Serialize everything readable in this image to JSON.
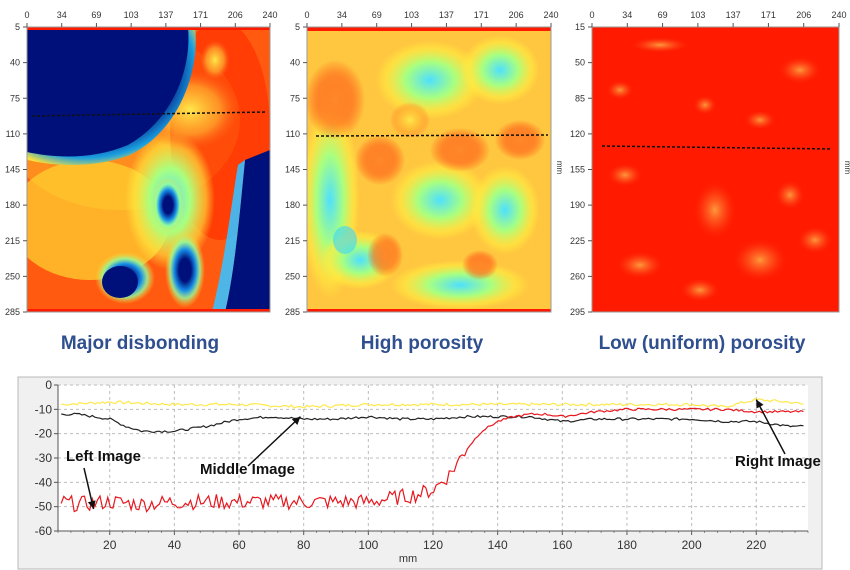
{
  "captions": {
    "left": "Major disbonding",
    "middle": "High porosity",
    "right": "Low (uniform) porosity"
  },
  "colors": {
    "heat_red": "#ff1a00",
    "heat_navy": "#00107a",
    "line_red": "#e8171e",
    "line_black": "#222222",
    "line_yellow": "#ffe84a",
    "caption_blue": "#2f4f8f",
    "chart_bg": "#f0f0f0"
  },
  "chart_data": [
    {
      "type": "heatmap",
      "name": "Major disbonding",
      "x_ticks": [
        "0",
        "34",
        "69",
        "103",
        "137",
        "171",
        "206",
        "240"
      ],
      "y_ticks": [
        "5",
        "40",
        "75",
        "110",
        "145",
        "180",
        "215",
        "250",
        "285"
      ],
      "colormap": "jet (navy → cyan → yellow → red)",
      "feature": "large navy disbond region top-left, navy blobs lower-middle and right edge",
      "dashed_line": "near y ≈ 90 mm"
    },
    {
      "type": "heatmap",
      "name": "High porosity",
      "x_ticks": [
        "0",
        "34",
        "69",
        "103",
        "137",
        "171",
        "206",
        "240"
      ],
      "y_ticks": [
        "5",
        "40",
        "75",
        "110",
        "145",
        "180",
        "215",
        "250",
        "285"
      ],
      "y_unit": "mm",
      "colormap": "jet",
      "feature": "mottled cyan / yellow / orange texture",
      "dashed_line": "near y ≈ 110 mm"
    },
    {
      "type": "heatmap",
      "name": "Low (uniform) porosity",
      "x_ticks": [
        "0",
        "34",
        "69",
        "103",
        "137",
        "171",
        "206",
        "240"
      ],
      "y_ticks": [
        "15",
        "50",
        "85",
        "120",
        "155",
        "190",
        "225",
        "260",
        "295"
      ],
      "y_unit": "mm",
      "colormap": "jet",
      "feature": "almost uniform red with light orange patches",
      "dashed_line": "near y ≈ 128 mm"
    },
    {
      "type": "line",
      "xlabel": "mm",
      "x_ticks": [
        "20",
        "40",
        "60",
        "80",
        "100",
        "120",
        "140",
        "160",
        "180",
        "200",
        "220"
      ],
      "y_ticks": [
        "0",
        "-10",
        "-20",
        "-30",
        "-40",
        "-50",
        "-60"
      ],
      "xlim": [
        4,
        236
      ],
      "ylim": [
        -60,
        0
      ],
      "grid": true,
      "series": [
        {
          "color": "yellow",
          "x": [
            5,
            20,
            40,
            60,
            80,
            100,
            120,
            140,
            160,
            180,
            200,
            210,
            220,
            230,
            235
          ],
          "y": [
            -8,
            -7,
            -8,
            -8,
            -9,
            -8,
            -8,
            -8,
            -8,
            -8,
            -8,
            -9,
            -6,
            -7,
            -8
          ]
        },
        {
          "color": "black",
          "x": [
            5,
            10,
            20,
            25,
            30,
            40,
            50,
            60,
            70,
            80,
            90,
            100,
            110,
            120,
            130,
            140,
            150,
            160,
            170,
            180,
            190,
            200,
            210,
            220,
            230,
            235
          ],
          "y": [
            -12,
            -12,
            -14,
            -17,
            -19,
            -19,
            -17,
            -14,
            -13,
            -14,
            -14,
            -13,
            -14,
            -14,
            -13,
            -13,
            -13,
            -15,
            -14,
            -14,
            -14,
            -14,
            -15,
            -15,
            -17,
            -17
          ]
        },
        {
          "color": "red",
          "x": [
            5,
            10,
            20,
            30,
            40,
            50,
            60,
            70,
            80,
            90,
            100,
            105,
            110,
            115,
            120,
            125,
            130,
            135,
            140,
            145,
            150,
            155,
            160,
            170,
            180,
            190,
            200,
            210,
            220,
            230,
            235
          ],
          "y": [
            -48,
            -49,
            -48,
            -49,
            -48,
            -48,
            -48,
            -48,
            -48,
            -48,
            -48,
            -47,
            -46,
            -45,
            -43,
            -37,
            -27,
            -19,
            -15,
            -13,
            -12,
            -12,
            -13,
            -11,
            -10,
            -10,
            -10,
            -10,
            -11,
            -11,
            -11
          ]
        }
      ],
      "annotations": [
        {
          "text": "Left Image",
          "x": 15,
          "y": -50
        },
        {
          "text": "Middle Image",
          "x": 80,
          "y": -13
        },
        {
          "text": "Right  Image",
          "x": 220,
          "y": -7
        }
      ]
    }
  ]
}
